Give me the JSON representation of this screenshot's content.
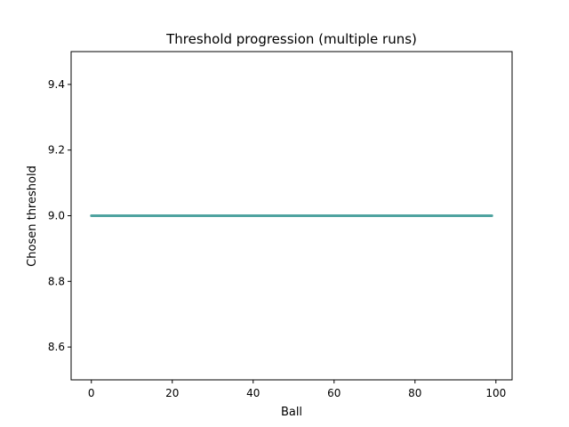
{
  "chart_data": {
    "type": "line",
    "title": "Threshold progression (multiple runs)",
    "xlabel": "Ball",
    "ylabel": "Chosen threshold",
    "xlim": [
      -5,
      104
    ],
    "ylim": [
      8.5,
      9.5
    ],
    "xticks": [
      0,
      20,
      40,
      60,
      80,
      100
    ],
    "xtick_labels": [
      "0",
      "20",
      "40",
      "60",
      "80",
      "100"
    ],
    "yticks": [
      8.6,
      8.8,
      9.0,
      9.2,
      9.4
    ],
    "ytick_labels": [
      "8.6",
      "8.8",
      "9.0",
      "9.2",
      "9.4"
    ],
    "grid": false,
    "series": [
      {
        "x": [
          0,
          99
        ],
        "y": [
          9.0,
          9.0
        ],
        "color": "#4fa3a0"
      }
    ]
  }
}
